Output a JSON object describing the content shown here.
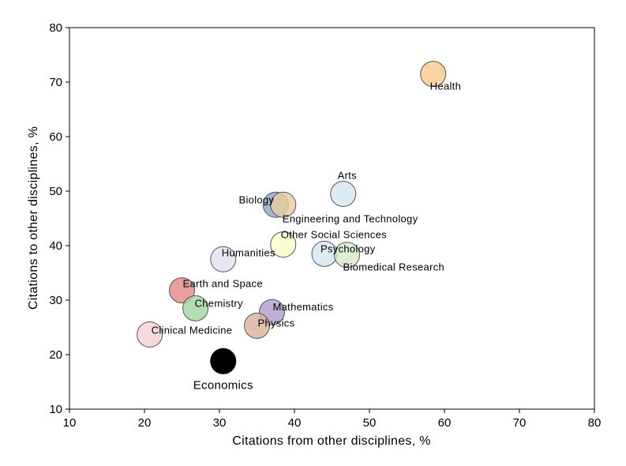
{
  "chart_data": {
    "type": "scatter",
    "title": "",
    "xlabel": "Citations from other disciplines, %",
    "ylabel": "Citations to other disciplines, %",
    "xlim": [
      10,
      80
    ],
    "ylim": [
      10,
      80
    ],
    "xticks": [
      10,
      20,
      30,
      40,
      50,
      60,
      70,
      80
    ],
    "yticks": [
      10,
      20,
      30,
      40,
      50,
      60,
      70,
      80
    ],
    "grid": false,
    "points": [
      {
        "name": "Health",
        "x": 58.5,
        "y": 71.5,
        "color": "#f7c98f",
        "label_pos": "below-right"
      },
      {
        "name": "Arts",
        "x": 46.5,
        "y": 49.5,
        "color": "#d6e6f3",
        "label_pos": "above"
      },
      {
        "name": "Biology",
        "x": 37.5,
        "y": 47.5,
        "color": "#8aa6cc",
        "label_pos": "left"
      },
      {
        "name": "Engineering and Technology",
        "x": 38.5,
        "y": 47.5,
        "color": "#e7ce9c",
        "label_pos": "below-right"
      },
      {
        "name": "Other Social Sciences",
        "x": 38.5,
        "y": 40.2,
        "color": "#fdfcc9",
        "label_pos": "above-right"
      },
      {
        "name": "Psychology",
        "x": 44.0,
        "y": 38.5,
        "color": "#d6e6f3",
        "label_pos": "above-right"
      },
      {
        "name": "Biomedical Research",
        "x": 47.0,
        "y": 38.3,
        "color": "#d6eac9",
        "label_pos": "below-right"
      },
      {
        "name": "Humanities",
        "x": 30.5,
        "y": 37.5,
        "color": "#e5dff0",
        "label_pos": "right"
      },
      {
        "name": "Earth and Space",
        "x": 25.0,
        "y": 31.8,
        "color": "#e38a88",
        "label_pos": "right"
      },
      {
        "name": "Chemistry",
        "x": 26.8,
        "y": 28.5,
        "color": "#a3d6a0",
        "label_pos": "right"
      },
      {
        "name": "Mathematics",
        "x": 37.0,
        "y": 27.8,
        "color": "#b39fcd",
        "label_pos": "right"
      },
      {
        "name": "Physics",
        "x": 35.0,
        "y": 25.3,
        "color": "#d9b49a",
        "label_pos": "right"
      },
      {
        "name": "Clinical Medicine",
        "x": 20.7,
        "y": 23.7,
        "color": "#f6d1d1",
        "label_pos": "right"
      },
      {
        "name": "Economics",
        "x": 30.5,
        "y": 18.8,
        "color": "#000000",
        "label_pos": "below"
      }
    ]
  }
}
